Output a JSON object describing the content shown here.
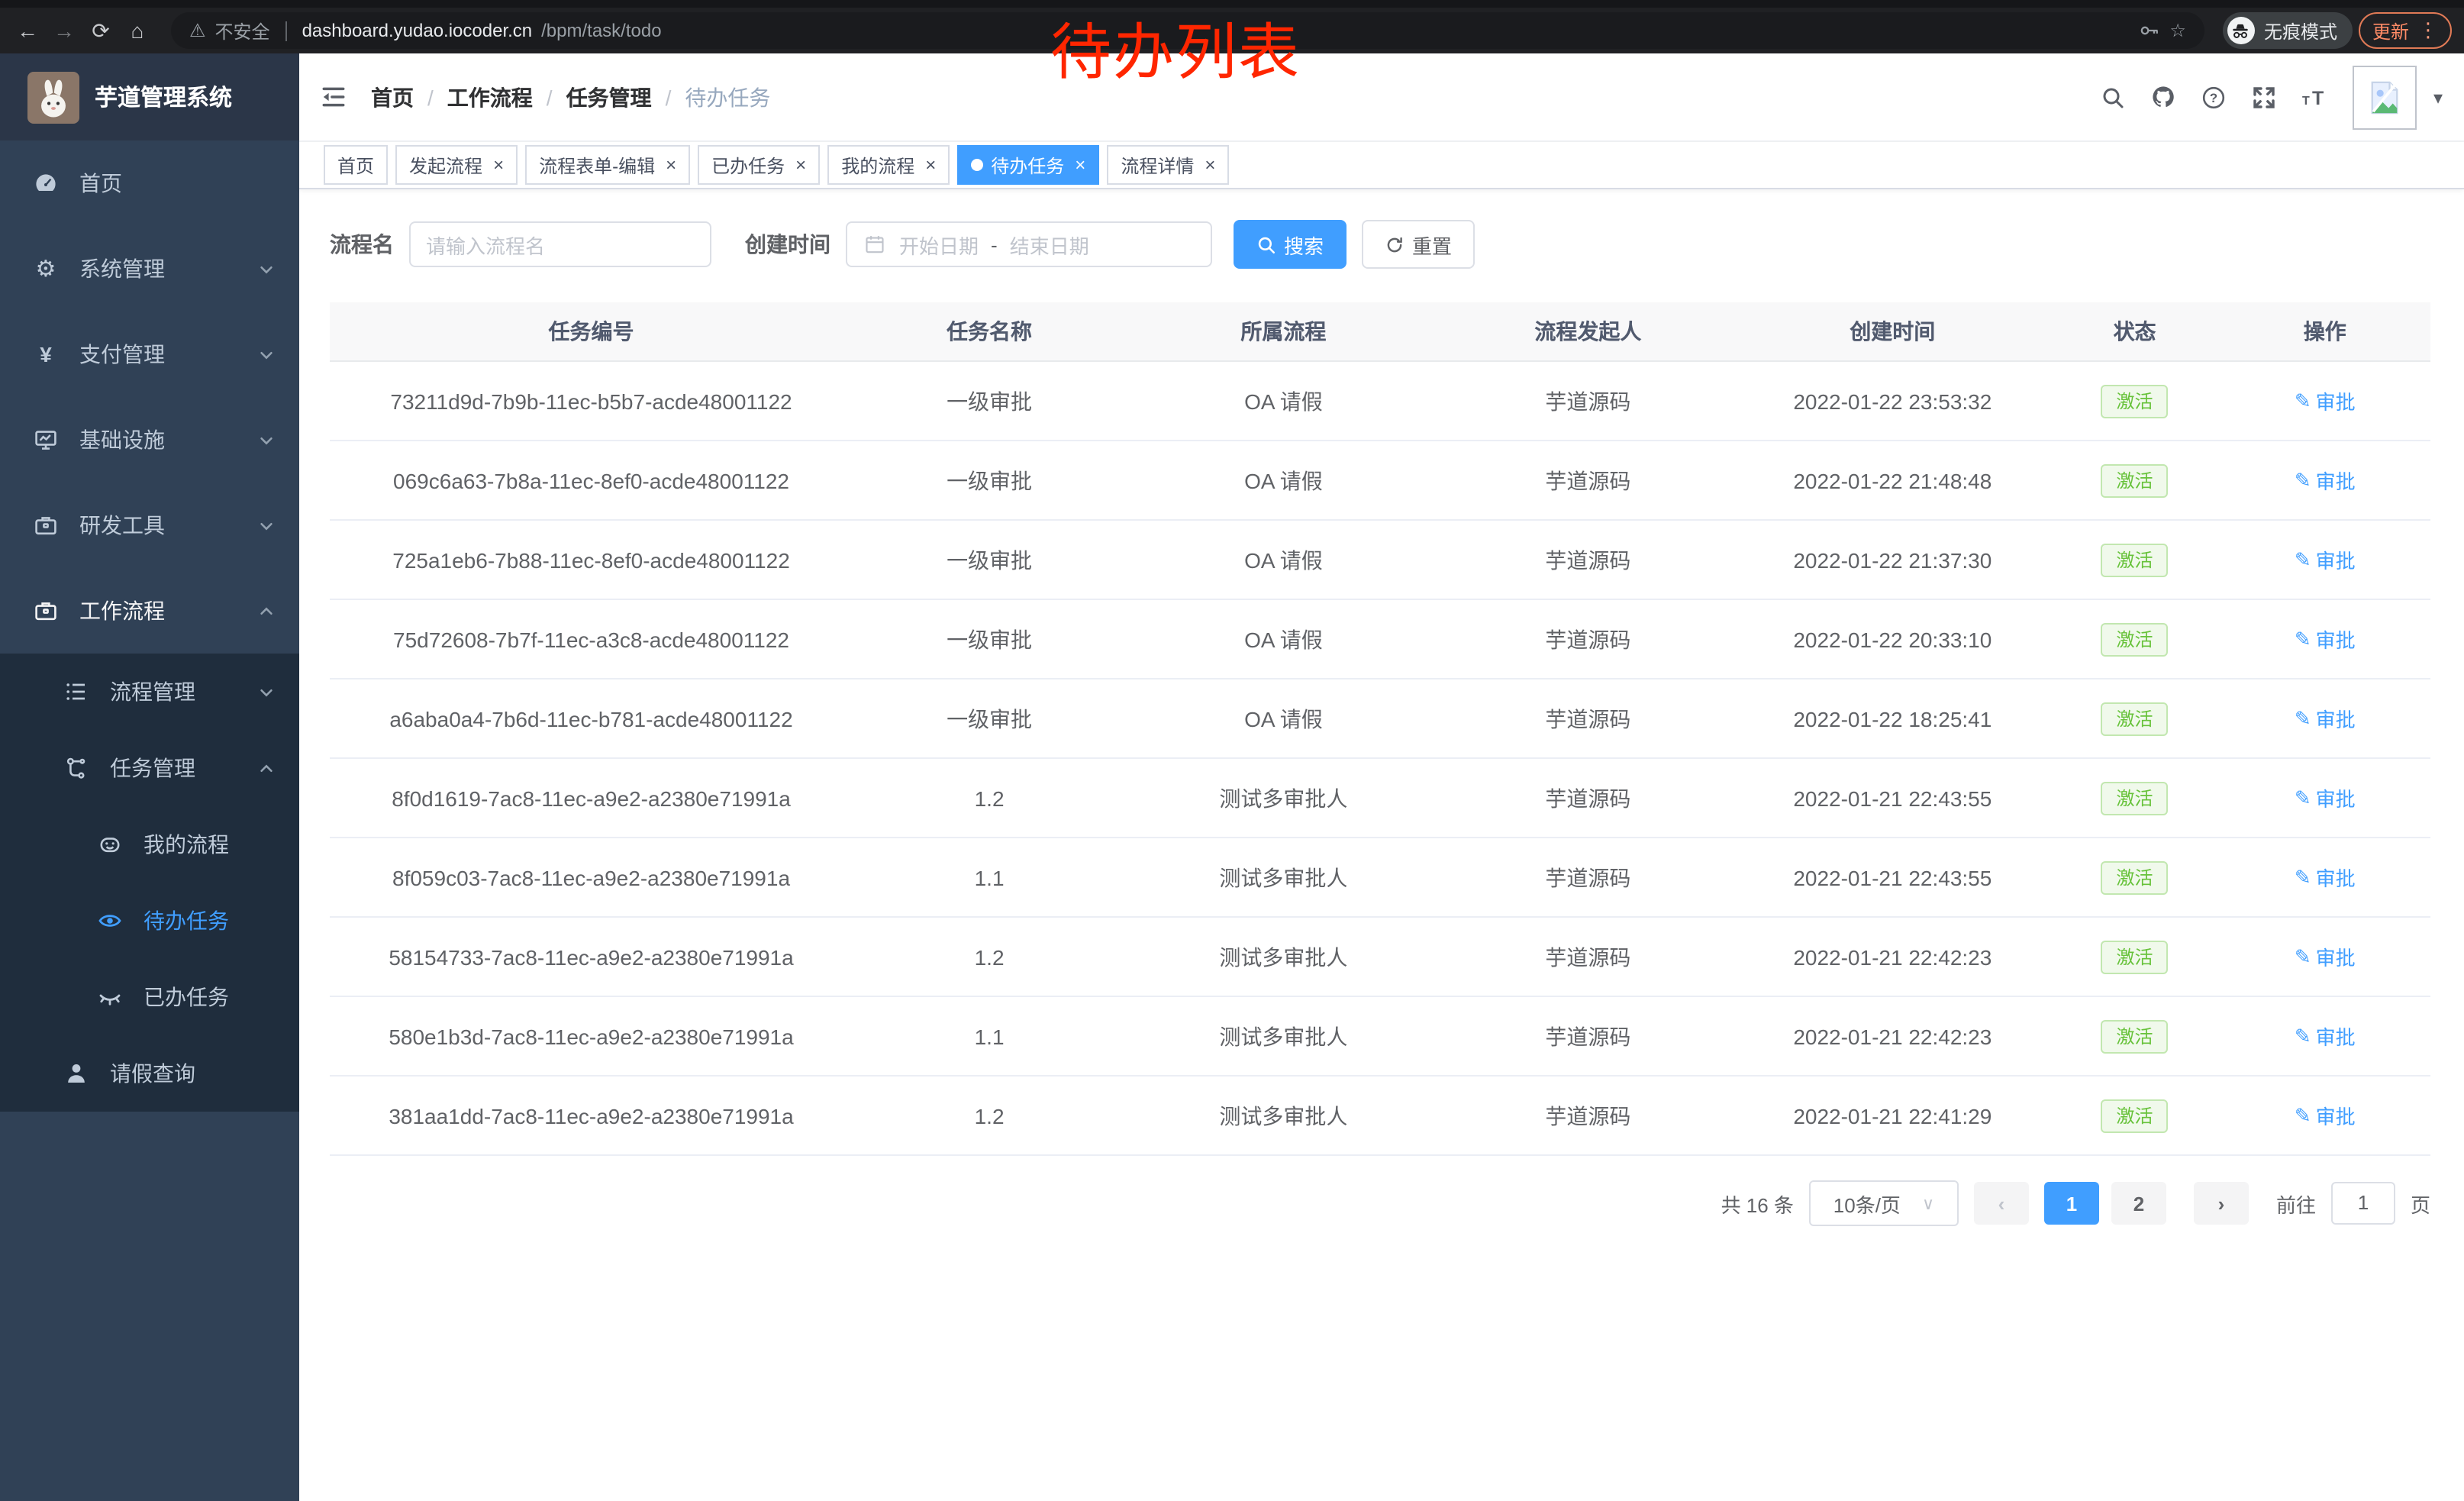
{
  "browser": {
    "security_label": "不安全",
    "url_host": "dashboard.yudao.iocoder.cn",
    "url_path": "/bpm/task/todo",
    "incognito_label": "无痕模式",
    "update_label": "更新"
  },
  "annotation": {
    "text": "待办列表",
    "color": "#ff2600"
  },
  "colors": {
    "accent": "#409eff",
    "success": "#67c23a",
    "sidebar_bg": "#304156",
    "sidebar_sub_bg": "#1f2d3d",
    "sidebar_text": "#bfcbd9"
  },
  "sidebar": {
    "logo_title": "芋道管理系统",
    "items": [
      {
        "id": "home",
        "label": "首页",
        "icon": "dashboard-icon",
        "level": 1,
        "dark": false,
        "chevron": null,
        "active": false,
        "parent": false
      },
      {
        "id": "system",
        "label": "系统管理",
        "icon": "gear-icon",
        "level": 1,
        "dark": false,
        "chevron": "down",
        "active": false,
        "parent": false
      },
      {
        "id": "payment",
        "label": "支付管理",
        "icon": "yen-icon",
        "level": 1,
        "dark": false,
        "chevron": "down",
        "active": false,
        "parent": false
      },
      {
        "id": "infra",
        "label": "基础设施",
        "icon": "monitor-icon",
        "level": 1,
        "dark": false,
        "chevron": "down",
        "active": false,
        "parent": false
      },
      {
        "id": "devtools",
        "label": "研发工具",
        "icon": "toolbox-icon",
        "level": 1,
        "dark": false,
        "chevron": "down",
        "active": false,
        "parent": false
      },
      {
        "id": "workflow",
        "label": "工作流程",
        "icon": "briefcase-icon",
        "level": 1,
        "dark": false,
        "chevron": "up",
        "active": false,
        "parent": true
      },
      {
        "id": "process-mgmt",
        "label": "流程管理",
        "icon": "list-icon",
        "level": 2,
        "dark": true,
        "chevron": "down",
        "active": false,
        "parent": false
      },
      {
        "id": "task-mgmt",
        "label": "任务管理",
        "icon": "tree-icon",
        "level": 2,
        "dark": true,
        "chevron": "up",
        "active": false,
        "parent": false
      },
      {
        "id": "my-process",
        "label": "我的流程",
        "icon": "robot-icon",
        "level": 3,
        "dark": true,
        "chevron": null,
        "active": false,
        "parent": false
      },
      {
        "id": "todo-task",
        "label": "待办任务",
        "icon": "eye-open-icon",
        "level": 3,
        "dark": true,
        "chevron": null,
        "active": true,
        "parent": false
      },
      {
        "id": "done-task",
        "label": "已办任务",
        "icon": "eye-closed-icon",
        "level": 3,
        "dark": true,
        "chevron": null,
        "active": false,
        "parent": false
      },
      {
        "id": "leave-query",
        "label": "请假查询",
        "icon": "user-icon",
        "level": 2,
        "dark": true,
        "chevron": null,
        "active": false,
        "parent": false
      }
    ]
  },
  "breadcrumb": {
    "items": [
      "首页",
      "工作流程",
      "任务管理",
      "待办任务"
    ]
  },
  "tabs": [
    {
      "label": "首页",
      "closable": false,
      "active": false
    },
    {
      "label": "发起流程",
      "closable": true,
      "active": false
    },
    {
      "label": "流程表单-编辑",
      "closable": true,
      "active": false
    },
    {
      "label": "已办任务",
      "closable": true,
      "active": false
    },
    {
      "label": "我的流程",
      "closable": true,
      "active": false
    },
    {
      "label": "待办任务",
      "closable": true,
      "active": true
    },
    {
      "label": "流程详情",
      "closable": true,
      "active": false
    }
  ],
  "filters": {
    "name_label": "流程名",
    "name_placeholder": "请输入流程名",
    "time_label": "创建时间",
    "start_placeholder": "开始日期",
    "range_separator": "-",
    "end_placeholder": "结束日期",
    "search_label": "搜索",
    "reset_label": "重置"
  },
  "table": {
    "columns": [
      "任务编号",
      "任务名称",
      "所属流程",
      "流程发起人",
      "创建时间",
      "状态",
      "操作"
    ],
    "col_widths": [
      "25%",
      "13%",
      "15%",
      "14%",
      "15%",
      "8%",
      "10%"
    ],
    "action_label": "审批",
    "rows": [
      {
        "id": "73211d9d-7b9b-11ec-b5b7-acde48001122",
        "name": "一级审批",
        "process": "OA 请假",
        "starter": "芋道源码",
        "time": "2022-01-22 23:53:32",
        "status": "激活"
      },
      {
        "id": "069c6a63-7b8a-11ec-8ef0-acde48001122",
        "name": "一级审批",
        "process": "OA 请假",
        "starter": "芋道源码",
        "time": "2022-01-22 21:48:48",
        "status": "激活"
      },
      {
        "id": "725a1eb6-7b88-11ec-8ef0-acde48001122",
        "name": "一级审批",
        "process": "OA 请假",
        "starter": "芋道源码",
        "time": "2022-01-22 21:37:30",
        "status": "激活"
      },
      {
        "id": "75d72608-7b7f-11ec-a3c8-acde48001122",
        "name": "一级审批",
        "process": "OA 请假",
        "starter": "芋道源码",
        "time": "2022-01-22 20:33:10",
        "status": "激活"
      },
      {
        "id": "a6aba0a4-7b6d-11ec-b781-acde48001122",
        "name": "一级审批",
        "process": "OA 请假",
        "starter": "芋道源码",
        "time": "2022-01-22 18:25:41",
        "status": "激活"
      },
      {
        "id": "8f0d1619-7ac8-11ec-a9e2-a2380e71991a",
        "name": "1.2",
        "process": "测试多审批人",
        "starter": "芋道源码",
        "time": "2022-01-21 22:43:55",
        "status": "激活"
      },
      {
        "id": "8f059c03-7ac8-11ec-a9e2-a2380e71991a",
        "name": "1.1",
        "process": "测试多审批人",
        "starter": "芋道源码",
        "time": "2022-01-21 22:43:55",
        "status": "激活"
      },
      {
        "id": "58154733-7ac8-11ec-a9e2-a2380e71991a",
        "name": "1.2",
        "process": "测试多审批人",
        "starter": "芋道源码",
        "time": "2022-01-21 22:42:23",
        "status": "激活"
      },
      {
        "id": "580e1b3d-7ac8-11ec-a9e2-a2380e71991a",
        "name": "1.1",
        "process": "测试多审批人",
        "starter": "芋道源码",
        "time": "2022-01-21 22:42:23",
        "status": "激活"
      },
      {
        "id": "381aa1dd-7ac8-11ec-a9e2-a2380e71991a",
        "name": "1.2",
        "process": "测试多审批人",
        "starter": "芋道源码",
        "time": "2022-01-21 22:41:29",
        "status": "激活"
      }
    ]
  },
  "pagination": {
    "total_label": "共 16 条",
    "page_size_label": "10条/页",
    "pages": [
      {
        "label": "1",
        "active": true
      },
      {
        "label": "2",
        "active": false
      }
    ],
    "goto_label": "前往",
    "goto_value": "1",
    "goto_unit": "页"
  }
}
